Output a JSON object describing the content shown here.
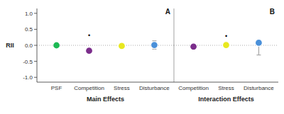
{
  "chart_data": [
    {
      "type": "dot",
      "title": "A",
      "xlabel": "Main Effects",
      "ylabel": "RII",
      "categories": [
        "PSF",
        "Competition",
        "Stress",
        "Disturbance"
      ],
      "values": [
        0.0,
        -0.17,
        -0.02,
        0.01
      ],
      "error_low": [
        null,
        null,
        0.055,
        0.13
      ],
      "error_high": [
        null,
        null,
        0.055,
        0.13
      ],
      "colors": [
        "#1db954",
        "#7b2d8b",
        "#e8e820",
        "#4a90d9"
      ],
      "annotations": [
        {
          "text": "•",
          "x": "Competition",
          "y": 0.31
        }
      ],
      "reference_y": 0,
      "ylim": [
        -1.15,
        1.15
      ],
      "yticks": [
        {
          "value": -1.0,
          "label": "-1.0"
        },
        -0.5,
        {
          "value": 0.0,
          "label": "0.0"
        },
        0.5,
        {
          "value": 1.0,
          "label": "1.0"
        }
      ]
    },
    {
      "type": "dot",
      "title": "B",
      "xlabel": "Interaction Effects",
      "categories": [
        "Competition",
        "Stress",
        "Disturbance"
      ],
      "values": [
        -0.04,
        0.01,
        0.08
      ],
      "error_low": [
        null,
        null,
        0.38
      ],
      "error_high": [
        null,
        null,
        0.08
      ],
      "colors": [
        "#7b2d8b",
        "#e8e820",
        "#4a90d9"
      ],
      "annotations": [
        {
          "text": "•",
          "x": "Stress",
          "y": 0.28
        }
      ],
      "reference_y": 0,
      "ylim": [
        -1.15,
        1.15
      ],
      "tick_labels": "x"
    }
  ]
}
